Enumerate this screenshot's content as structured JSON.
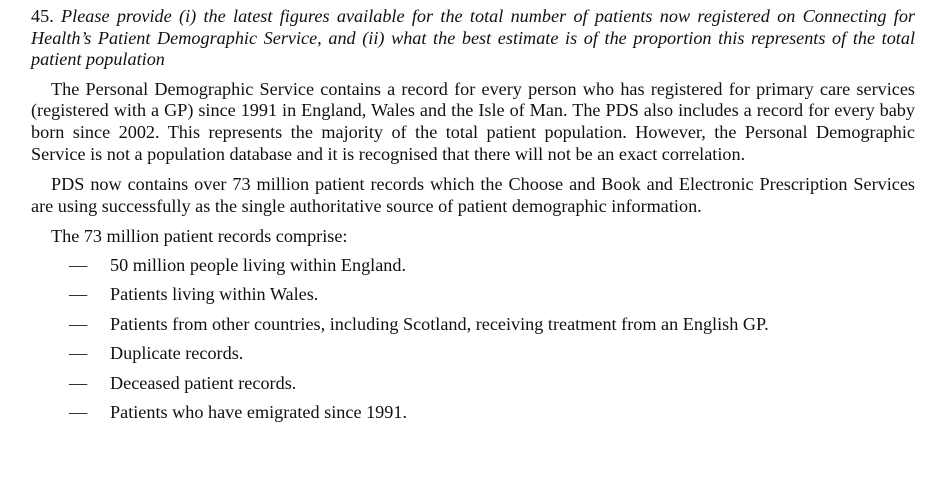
{
  "question": {
    "number": "45.",
    "text": "Please provide (i) the latest figures available for the total number of patients now registered on Connecting for Health’s Patient Demographic Service, and (ii) what the best estimate is of the proportion this represents of the total patient population"
  },
  "paragraphs": [
    "The Personal Demographic Service contains a record for every person who has registered for primary care services (registered with a GP) since 1991 in England, Wales and the Isle of Man. The PDS also includes a record for every baby born since 2002. This represents the majority of the total patient population. However, the Personal Demographic Service is not a population database and it is recognised that there will not be an exact correlation.",
    "PDS now contains over 73 million patient records which the Choose and Book and Electronic Prescription Services are using successfully as the single authoritative source of patient demographic information.",
    "The 73 million patient records comprise:"
  ],
  "list": {
    "bullet": "—",
    "items": [
      "50 million people living within England.",
      "Patients living within Wales.",
      "Patients from other countries, including Scotland, receiving treatment from an English GP.",
      "Duplicate records.",
      "Deceased patient records.",
      "Patients who have emigrated since 1991."
    ]
  }
}
